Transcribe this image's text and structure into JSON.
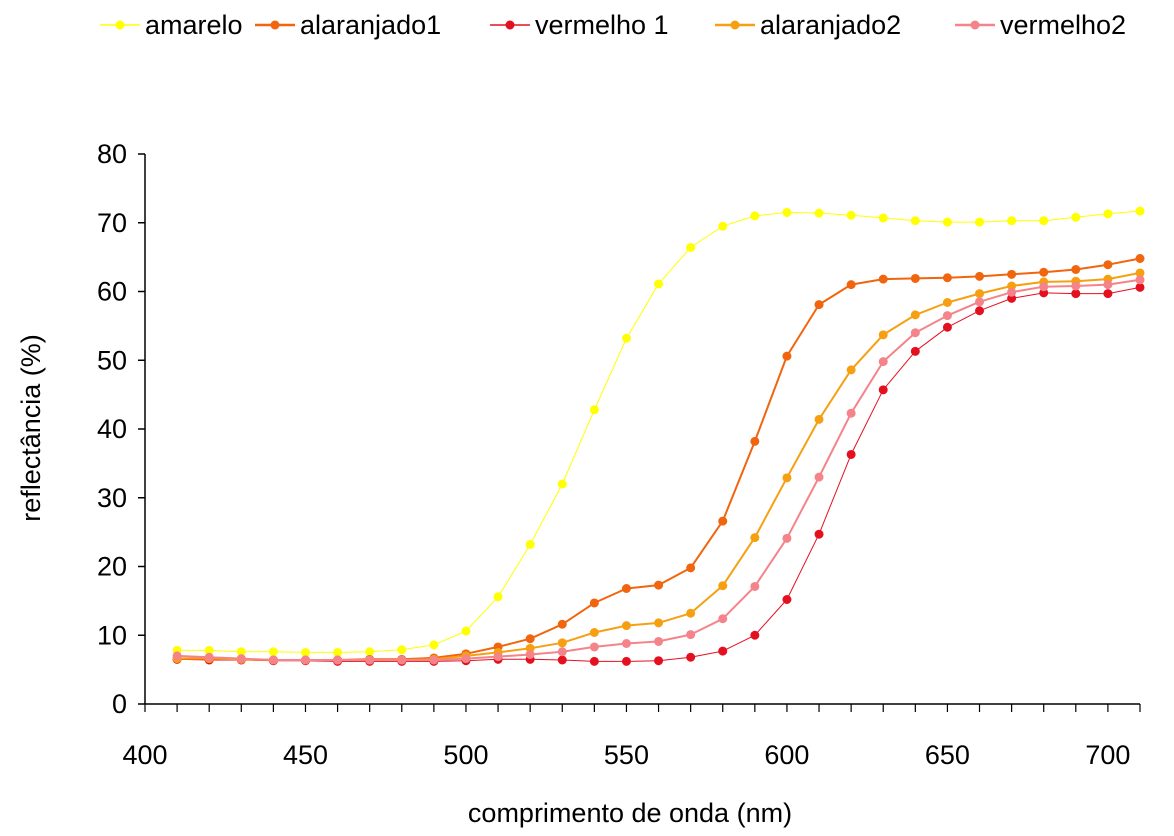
{
  "chart_data": {
    "type": "line",
    "title": "",
    "xlabel": "comprimento de onda (nm)",
    "ylabel": "reflectância (%)",
    "xlim": [
      400,
      710
    ],
    "ylim": [
      0,
      80
    ],
    "x_ticks": [
      "400",
      "450",
      "500",
      "550",
      "600",
      "650",
      "700"
    ],
    "y_ticks": [
      "0",
      "10",
      "20",
      "30",
      "40",
      "50",
      "60",
      "70",
      "80"
    ],
    "grid": false,
    "legend_position": "top",
    "x": [
      410,
      420,
      430,
      440,
      450,
      460,
      470,
      480,
      490,
      500,
      510,
      520,
      530,
      540,
      550,
      560,
      570,
      580,
      590,
      600,
      610,
      620,
      630,
      640,
      650,
      660,
      670,
      680,
      690,
      700,
      710
    ],
    "series": [
      {
        "name": "amarelo",
        "color": "#ffff00",
        "line_width": 1,
        "values": [
          7.8,
          7.8,
          7.6,
          7.6,
          7.5,
          7.5,
          7.6,
          7.9,
          8.6,
          10.6,
          15.6,
          23.2,
          32.0,
          42.8,
          53.2,
          61.1,
          66.4,
          69.5,
          71.0,
          71.5,
          71.4,
          71.1,
          70.7,
          70.3,
          70.1,
          70.1,
          70.3,
          70.3,
          70.8,
          71.3,
          71.7
        ]
      },
      {
        "name": "alaranjado1",
        "color": "#f0650e",
        "line_width": 2,
        "values": [
          6.6,
          6.6,
          6.5,
          6.4,
          6.4,
          6.4,
          6.5,
          6.5,
          6.7,
          7.3,
          8.3,
          9.5,
          11.6,
          14.7,
          16.8,
          17.3,
          19.8,
          26.6,
          38.2,
          50.6,
          58.1,
          61.0,
          61.8,
          61.9,
          62.0,
          62.2,
          62.5,
          62.8,
          63.2,
          63.9,
          64.8
        ]
      },
      {
        "name": "vermelho 1",
        "color": "#e5101f",
        "line_width": 1,
        "values": [
          6.5,
          6.4,
          6.4,
          6.3,
          6.3,
          6.2,
          6.2,
          6.2,
          6.2,
          6.3,
          6.5,
          6.5,
          6.4,
          6.2,
          6.2,
          6.3,
          6.8,
          7.7,
          10.0,
          15.2,
          24.7,
          36.3,
          45.7,
          51.3,
          54.8,
          57.2,
          59.0,
          59.8,
          59.7,
          59.7,
          60.6
        ]
      },
      {
        "name": "alaranjado2",
        "color": "#f6a011",
        "line_width": 2,
        "values": [
          6.6,
          6.6,
          6.5,
          6.4,
          6.4,
          6.4,
          6.4,
          6.4,
          6.5,
          7.0,
          7.5,
          8.1,
          8.9,
          10.4,
          11.4,
          11.8,
          13.2,
          17.2,
          24.2,
          32.9,
          41.4,
          48.6,
          53.7,
          56.6,
          58.4,
          59.7,
          60.8,
          61.4,
          61.5,
          61.8,
          62.7
        ]
      },
      {
        "name": "vermelho2",
        "color": "#f5838a",
        "line_width": 2,
        "values": [
          7.0,
          6.8,
          6.6,
          6.4,
          6.4,
          6.4,
          6.4,
          6.4,
          6.4,
          6.6,
          6.9,
          7.2,
          7.6,
          8.3,
          8.8,
          9.1,
          10.1,
          12.4,
          17.1,
          24.1,
          33.0,
          42.3,
          49.8,
          54.0,
          56.5,
          58.5,
          59.9,
          60.7,
          60.8,
          61.0,
          61.7
        ]
      }
    ]
  }
}
